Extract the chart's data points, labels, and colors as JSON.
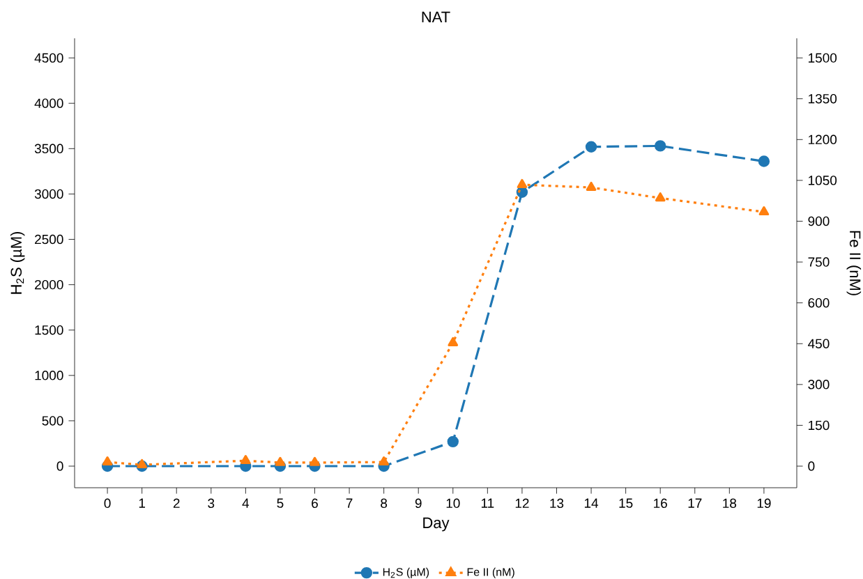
{
  "chart_data": {
    "type": "line",
    "title": "NAT",
    "xlabel": "Day",
    "ylabel": "H$_{2}$S (µM)",
    "y2label": "Fe II (nM)",
    "x": [
      0,
      1,
      4,
      5,
      6,
      8,
      10,
      12,
      14,
      16,
      19
    ],
    "series": [
      {
        "name": "H$_{2}$S (µM)",
        "color": "#1f77b4",
        "marker": "circle",
        "line_style": "dashed",
        "values": [
          0,
          0,
          0,
          0,
          0,
          0,
          270,
          3020,
          3520,
          3530,
          3360
        ]
      },
      {
        "name": "Fe II (nM)",
        "color": "#ff7f0e",
        "marker": "triangle",
        "line_style": "dotted",
        "axis": "y2",
        "values": [
          15,
          5,
          20,
          13,
          13,
          15,
          453,
          1034,
          1024,
          985,
          934
        ]
      }
    ],
    "xlim": [
      -0.95,
      19.95
    ],
    "xticks": [
      0,
      1,
      2,
      3,
      4,
      5,
      6,
      7,
      8,
      9,
      10,
      11,
      12,
      13,
      14,
      15,
      16,
      17,
      18,
      19
    ],
    "ylim": [
      -238,
      4716
    ],
    "yticks": [
      0,
      500,
      1000,
      1500,
      2000,
      2500,
      3000,
      3500,
      4000,
      4500
    ],
    "y2lim": [
      -79.3,
      1572
    ],
    "y2ticks": [
      0,
      150,
      300,
      450,
      600,
      750,
      900,
      1050,
      1200,
      1350,
      1500
    ],
    "grid": false,
    "legend": "bottom"
  }
}
